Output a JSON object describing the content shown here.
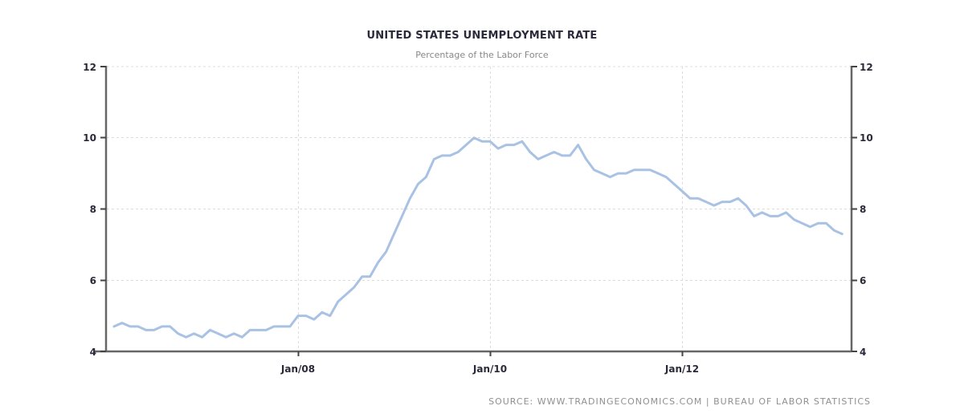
{
  "chart_data": {
    "type": "line",
    "title": "UNITED STATES UNEMPLOYMENT RATE",
    "subtitle": "Percentage of the Labor Force",
    "xlabel": "",
    "ylabel": "",
    "ylim": [
      4,
      12
    ],
    "yticks": [
      4,
      6,
      8,
      10,
      12
    ],
    "xticks": [
      "Jan/08",
      "Jan/10",
      "Jan/12"
    ],
    "grid": true,
    "legend": "none",
    "line_color": "#a9c2e4",
    "x_start": "2006-02",
    "x_end": "2013-09",
    "series": [
      {
        "name": "Unemployment Rate",
        "x": [
          "2006-02",
          "2006-03",
          "2006-04",
          "2006-05",
          "2006-06",
          "2006-07",
          "2006-08",
          "2006-09",
          "2006-10",
          "2006-11",
          "2006-12",
          "2007-01",
          "2007-02",
          "2007-03",
          "2007-04",
          "2007-05",
          "2007-06",
          "2007-07",
          "2007-08",
          "2007-09",
          "2007-10",
          "2007-11",
          "2007-12",
          "2008-01",
          "2008-02",
          "2008-03",
          "2008-04",
          "2008-05",
          "2008-06",
          "2008-07",
          "2008-08",
          "2008-09",
          "2008-10",
          "2008-11",
          "2008-12",
          "2009-01",
          "2009-02",
          "2009-03",
          "2009-04",
          "2009-05",
          "2009-06",
          "2009-07",
          "2009-08",
          "2009-09",
          "2009-10",
          "2009-11",
          "2009-12",
          "2010-01",
          "2010-02",
          "2010-03",
          "2010-04",
          "2010-05",
          "2010-06",
          "2010-07",
          "2010-08",
          "2010-09",
          "2010-10",
          "2010-11",
          "2010-12",
          "2011-01",
          "2011-02",
          "2011-03",
          "2011-04",
          "2011-05",
          "2011-06",
          "2011-07",
          "2011-08",
          "2011-09",
          "2011-10",
          "2011-11",
          "2011-12",
          "2012-01",
          "2012-02",
          "2012-03",
          "2012-04",
          "2012-05",
          "2012-06",
          "2012-07",
          "2012-08",
          "2012-09",
          "2012-10",
          "2012-11",
          "2012-12",
          "2013-01",
          "2013-02",
          "2013-03",
          "2013-04",
          "2013-05",
          "2013-06",
          "2013-07",
          "2013-08",
          "2013-09"
        ],
        "values": [
          4.7,
          4.8,
          4.7,
          4.7,
          4.6,
          4.6,
          4.7,
          4.7,
          4.5,
          4.4,
          4.5,
          4.4,
          4.6,
          4.5,
          4.4,
          4.5,
          4.4,
          4.6,
          4.6,
          4.6,
          4.7,
          4.7,
          4.7,
          5.0,
          5.0,
          4.9,
          5.1,
          5.0,
          5.4,
          5.6,
          5.8,
          6.1,
          6.1,
          6.5,
          6.8,
          7.3,
          7.8,
          8.3,
          8.7,
          8.9,
          9.4,
          9.5,
          9.5,
          9.6,
          9.8,
          10.0,
          9.9,
          9.9,
          9.7,
          9.8,
          9.8,
          9.9,
          9.6,
          9.4,
          9.5,
          9.6,
          9.5,
          9.5,
          9.8,
          9.4,
          9.1,
          9.0,
          8.9,
          9.0,
          9.0,
          9.1,
          9.1,
          9.1,
          9.0,
          8.9,
          8.7,
          8.5,
          8.3,
          8.3,
          8.2,
          8.1,
          8.2,
          8.2,
          8.3,
          8.1,
          7.8,
          7.9,
          7.8,
          7.8,
          7.9,
          7.7,
          7.6,
          7.5,
          7.6,
          7.6,
          7.4,
          7.3
        ]
      }
    ]
  },
  "header": {
    "title": "UNITED STATES UNEMPLOYMENT RATE",
    "subtitle": "Percentage of the Labor Force"
  },
  "axes": {
    "y_left": [
      "12",
      "10",
      "8",
      "6",
      "4"
    ],
    "y_right": [
      "12",
      "10",
      "8",
      "6",
      "4"
    ],
    "x": [
      "Jan/08",
      "Jan/10",
      "Jan/12"
    ]
  },
  "footer": {
    "source": "SOURCE: WWW.TRADINGECONOMICS.COM | BUREAU OF LABOR STATISTICS"
  }
}
